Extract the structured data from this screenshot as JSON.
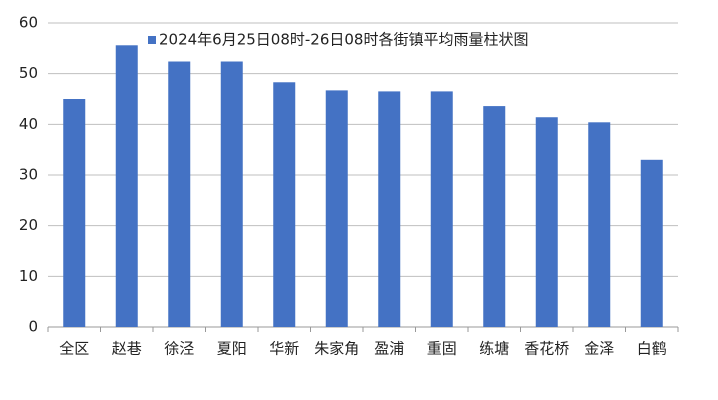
{
  "chart_data": {
    "type": "bar",
    "categories": [
      "全区",
      "赵巷",
      "徐泾",
      "夏阳",
      "华新",
      "朱家角",
      "盈浦",
      "重固",
      "练塘",
      "香花桥",
      "金泽",
      "白鹤"
    ],
    "series": [
      {
        "name": "2024年6月25日08时-26日08时各街镇平均雨量柱状图",
        "color": "#4472c4",
        "values": [
          45.0,
          55.6,
          52.4,
          52.4,
          48.3,
          46.7,
          46.5,
          46.5,
          43.6,
          41.4,
          40.4,
          33.0
        ]
      }
    ],
    "ylim": [
      0,
      60
    ],
    "yticks": [
      0,
      10,
      20,
      30,
      40,
      50,
      60
    ],
    "grid": true,
    "legend": "top"
  }
}
